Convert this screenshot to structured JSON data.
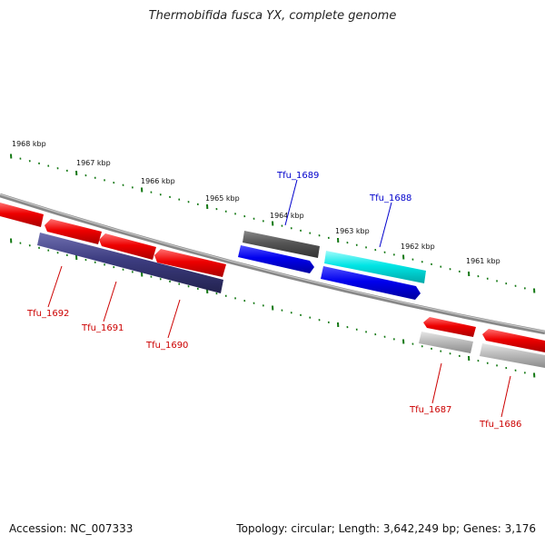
{
  "title": "Thermobifida fusca YX, complete genome",
  "footer": {
    "accession": "Accession: NC_007333",
    "summary": "Topology: circular; Length: 3,642,249 bp; Genes: 3,176"
  },
  "ruler": {
    "labels": [
      "1968 kbp",
      "1967 kbp",
      "1966 kbp",
      "1965 kbp",
      "1964 kbp",
      "1963 kbp",
      "1962 kbp",
      "1961 kbp"
    ]
  },
  "genes": [
    {
      "name": "Tfu_1692",
      "strand": "minus",
      "color": "#cc0000"
    },
    {
      "name": "Tfu_1691",
      "strand": "minus",
      "color": "#cc0000"
    },
    {
      "name": "Tfu_1690",
      "strand": "minus",
      "color": "#cc0000"
    },
    {
      "name": "Tfu_1689",
      "strand": "plus",
      "color": "#0000cc"
    },
    {
      "name": "Tfu_1688",
      "strand": "plus",
      "color": "#0000cc"
    },
    {
      "name": "Tfu_1687",
      "strand": "minus",
      "color": "#cc0000"
    },
    {
      "name": "Tfu_1686",
      "strand": "minus",
      "color": "#cc0000"
    }
  ],
  "colors": {
    "cds_forward": "#0000ee",
    "cds_reverse": "#ee0000",
    "gene_dark": "#555555",
    "gene_cyan": "#00e5e5",
    "gene_light": "#bbbbbb",
    "operon_purple": "#3c3c80",
    "tick_green": "#117711",
    "backbone": "#777777"
  }
}
